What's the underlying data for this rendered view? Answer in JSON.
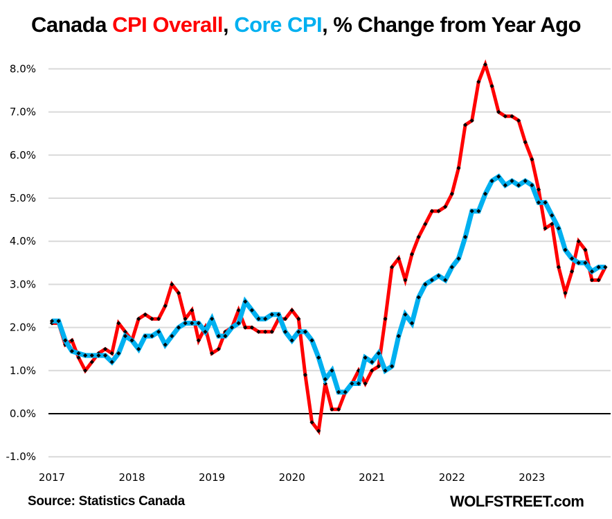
{
  "title": {
    "part1": "Canada ",
    "part2": "CPI Overall",
    "part3": ", ",
    "part4": "Core CPI",
    "part5": ", % Change from Year Ago"
  },
  "footer": {
    "source": "Source: Statistics Canada",
    "brand": "WOLFSTREET.com"
  },
  "chart_data": {
    "type": "line",
    "title": "Canada CPI Overall, Core CPI, % Change from Year Ago",
    "xlabel": "",
    "ylabel": "",
    "ylim": [
      -1.0,
      8.0
    ],
    "yticks": [
      "-1.0%",
      "0.0%",
      "1.0%",
      "2.0%",
      "3.0%",
      "4.0%",
      "5.0%",
      "6.0%",
      "7.0%",
      "8.0%"
    ],
    "ytick_values": [
      -1,
      0,
      1,
      2,
      3,
      4,
      5,
      6,
      7,
      8
    ],
    "xticks": [
      "2017",
      "2018",
      "2019",
      "2020",
      "2021",
      "2022",
      "2023"
    ],
    "x_start": "2017-01",
    "x_end": "2023-12",
    "frequency": "monthly",
    "grid": true,
    "legend": "none (series named in title by color)",
    "series": [
      {
        "name": "CPI Overall",
        "color": "#ff0000",
        "values": [
          2.1,
          2.1,
          1.6,
          1.7,
          1.3,
          1.0,
          1.2,
          1.4,
          1.5,
          1.4,
          2.1,
          1.9,
          1.7,
          2.2,
          2.3,
          2.2,
          2.2,
          2.5,
          3.0,
          2.8,
          2.2,
          2.4,
          1.7,
          2.0,
          1.4,
          1.5,
          1.9,
          2.0,
          2.4,
          2.0,
          2.0,
          1.9,
          1.9,
          1.9,
          2.2,
          2.2,
          2.4,
          2.2,
          0.9,
          -0.2,
          -0.4,
          0.7,
          0.1,
          0.1,
          0.5,
          0.7,
          1.0,
          0.7,
          1.0,
          1.1,
          2.2,
          3.4,
          3.6,
          3.1,
          3.7,
          4.1,
          4.4,
          4.7,
          4.7,
          4.8,
          5.1,
          5.7,
          6.7,
          6.8,
          7.7,
          8.1,
          7.6,
          7.0,
          6.9,
          6.9,
          6.8,
          6.3,
          5.9,
          5.2,
          4.3,
          4.4,
          3.4,
          2.8,
          3.3,
          4.0,
          3.8,
          3.1,
          3.1,
          3.4
        ]
      },
      {
        "name": "Core CPI",
        "color": "#00b0f0",
        "values": [
          2.15,
          2.15,
          1.7,
          1.45,
          1.4,
          1.35,
          1.35,
          1.35,
          1.35,
          1.2,
          1.4,
          1.8,
          1.7,
          1.5,
          1.8,
          1.8,
          1.9,
          1.6,
          1.8,
          2.0,
          2.1,
          2.1,
          2.1,
          1.9,
          2.2,
          1.8,
          1.8,
          2.0,
          2.1,
          2.6,
          2.4,
          2.2,
          2.2,
          2.3,
          2.3,
          1.9,
          1.7,
          1.9,
          1.9,
          1.7,
          1.3,
          0.8,
          1.0,
          0.5,
          0.5,
          0.7,
          0.7,
          1.3,
          1.2,
          1.4,
          1.0,
          1.1,
          1.8,
          2.3,
          2.1,
          2.7,
          3.0,
          3.1,
          3.2,
          3.1,
          3.4,
          3.6,
          4.1,
          4.7,
          4.7,
          5.1,
          5.4,
          5.5,
          5.3,
          5.4,
          5.3,
          5.4,
          5.3,
          4.9,
          4.9,
          4.6,
          4.3,
          3.8,
          3.6,
          3.5,
          3.5,
          3.3,
          3.4,
          3.4
        ]
      }
    ]
  }
}
